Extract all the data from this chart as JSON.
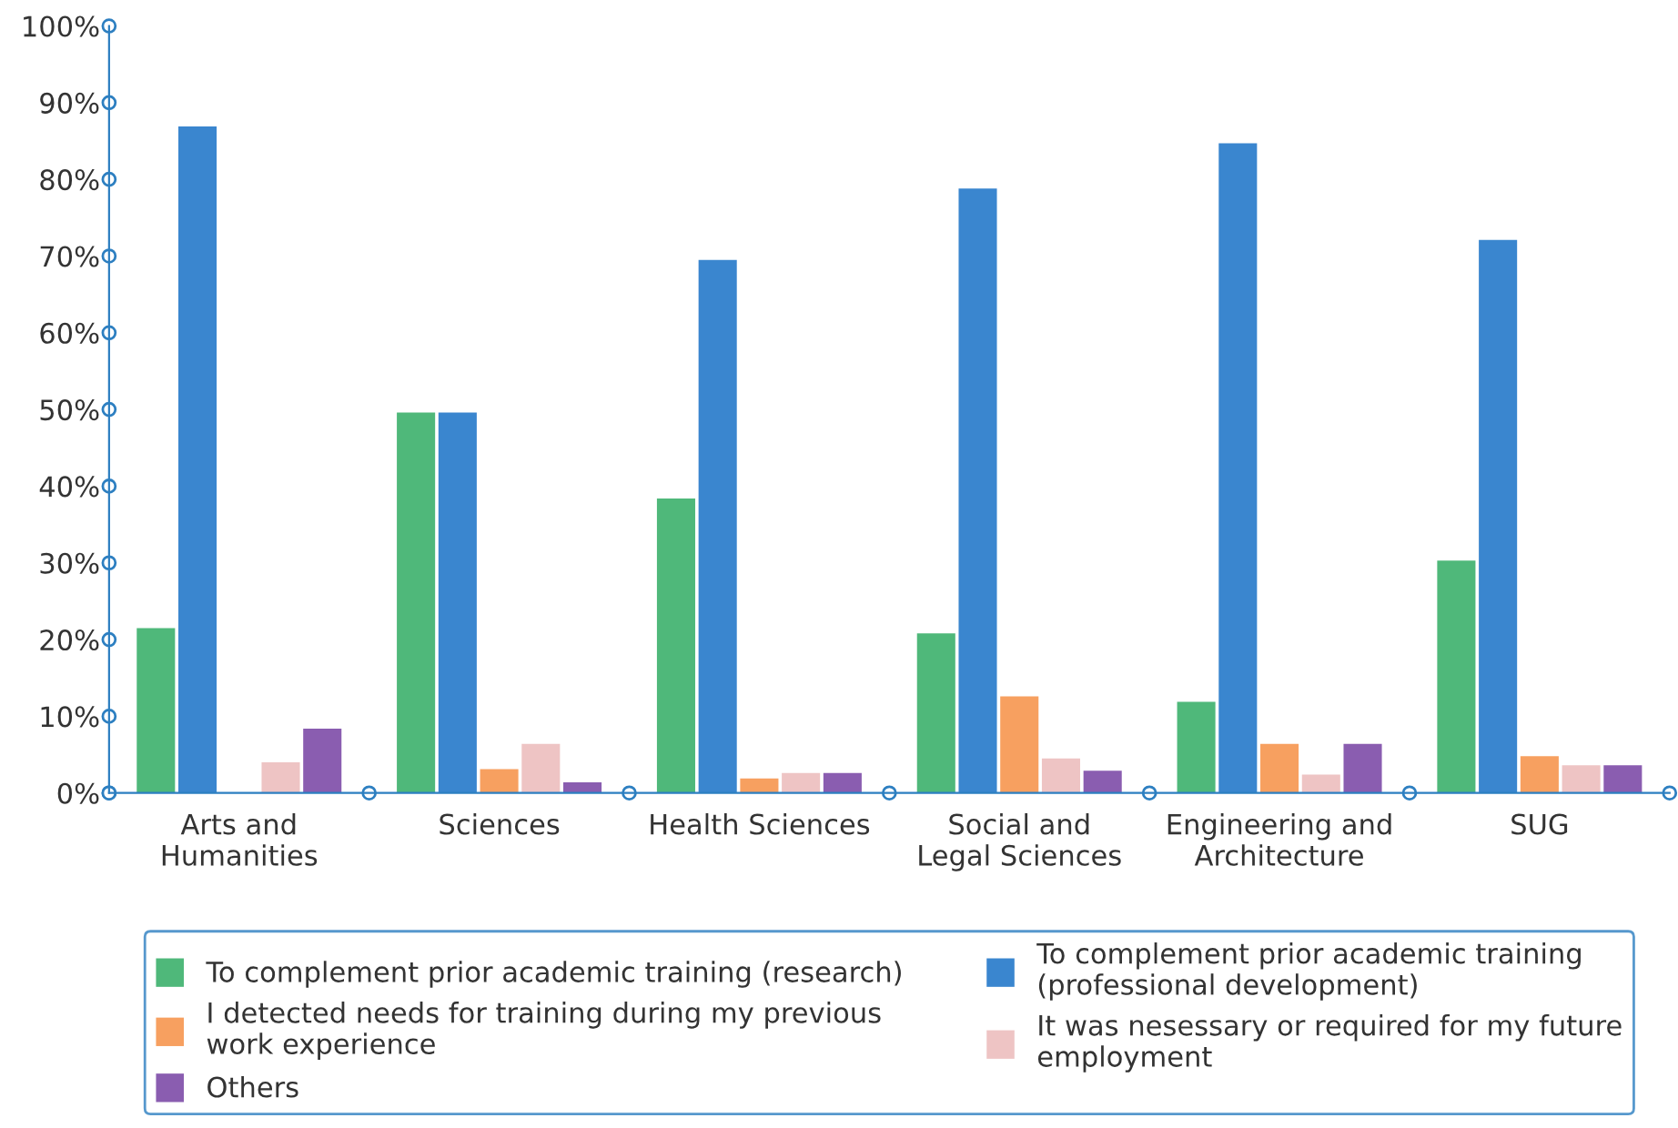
{
  "chart_data": {
    "type": "bar",
    "categories": [
      "Arts and\nHumanities",
      "Sciences",
      "Health Sciences",
      "Social and\nLegal Sciences",
      "Engineering and\nArchitecture",
      "SUG"
    ],
    "series": [
      {
        "name": "To complement prior academic training (research)",
        "color": "#4fb87a",
        "values": [
          21.5,
          49.6,
          38.4,
          20.8,
          11.9,
          30.3
        ]
      },
      {
        "name": "To complement prior academic training\n(professional development)",
        "color": "#3a86cf",
        "values": [
          86.9,
          49.6,
          69.5,
          78.8,
          84.7,
          72.1
        ]
      },
      {
        "name": "I detected needs for training during my previous\nwork experience",
        "color": "#f7a060",
        "values": [
          0,
          3.1,
          1.9,
          12.6,
          6.4,
          4.8
        ]
      },
      {
        "name": "It was nesessary or required for my future\nemployment",
        "color": "#eec4c4",
        "values": [
          4,
          6.4,
          2.6,
          4.5,
          2.4,
          3.6
        ]
      },
      {
        "name": "Others",
        "color": "#8a5db0",
        "values": [
          8.4,
          1.4,
          2.6,
          2.9,
          6.4,
          3.6
        ]
      }
    ],
    "ylim": [
      0,
      100
    ],
    "yticks": [
      {
        "value": 0,
        "label": "0%"
      },
      {
        "value": 10,
        "label": "10%"
      },
      {
        "value": 20,
        "label": "20%"
      },
      {
        "value": 30,
        "label": "30%"
      },
      {
        "value": 40,
        "label": "40%"
      },
      {
        "value": 50,
        "label": "50%"
      },
      {
        "value": 60,
        "label": "60%"
      },
      {
        "value": 70,
        "label": "70%"
      },
      {
        "value": 80,
        "label": "80%"
      },
      {
        "value": 90,
        "label": "90%"
      },
      {
        "value": 100,
        "label": "100%"
      }
    ],
    "grid": false,
    "legend": "bottom"
  }
}
